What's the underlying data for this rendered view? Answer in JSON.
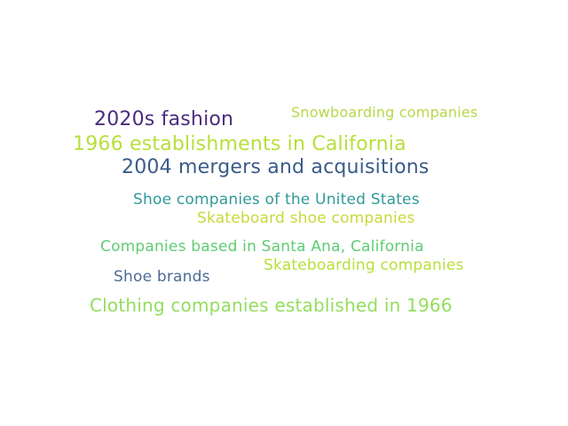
{
  "colors": {
    "background": "#ffffff",
    "w1": "#4b2c7f",
    "w2": "#b7d84a",
    "w3": "#b8df3a",
    "w4": "#3a5b88",
    "w5": "#2f9a98",
    "w6": "#c7d93b",
    "w7": "#5fcc73",
    "w8": "#b8df3a",
    "w9": "#4d6a98",
    "w10": "#94dd5e"
  },
  "words": [
    {
      "text": "2020s fashion"
    },
    {
      "text": "Snowboarding companies"
    },
    {
      "text": "1966 establishments in California"
    },
    {
      "text": "2004 mergers and acquisitions"
    },
    {
      "text": "Shoe companies of the United States"
    },
    {
      "text": "Skateboard shoe companies"
    },
    {
      "text": "Companies based in Santa Ana, California"
    },
    {
      "text": "Skateboarding companies"
    },
    {
      "text": "Shoe brands"
    },
    {
      "text": "Clothing companies established in 1966"
    }
  ]
}
